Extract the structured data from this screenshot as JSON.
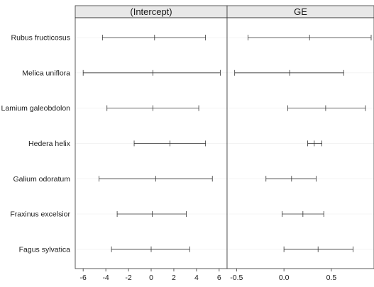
{
  "chart_data": {
    "type": "errorbar",
    "categories": [
      "Rubus fructicosus",
      "Melica uniflora",
      "Lamium galeobdolon",
      "Hedera helix",
      "Galium odoratum",
      "Fraxinus excelsior",
      "Fagus sylvatica"
    ],
    "panels": [
      {
        "title": "(Intercept)",
        "xlim": [
          -6.7,
          6.7
        ],
        "xticks": [
          -6,
          -4,
          -2,
          0,
          2,
          4,
          6
        ],
        "xtick_labels": [
          "-6",
          "-4",
          "-2",
          "0",
          "2",
          "4",
          "6"
        ],
        "estimates": [
          {
            "low": -4.3,
            "mid": 0.3,
            "high": 4.8
          },
          {
            "low": -6.0,
            "mid": 0.15,
            "high": 6.1
          },
          {
            "low": -3.9,
            "mid": 0.15,
            "high": 4.2
          },
          {
            "low": -1.5,
            "mid": 1.65,
            "high": 4.8
          },
          {
            "low": -4.6,
            "mid": 0.4,
            "high": 5.4
          },
          {
            "low": -3.0,
            "mid": 0.1,
            "high": 3.1
          },
          {
            "low": -3.5,
            "mid": 0.0,
            "high": 3.4
          }
        ]
      },
      {
        "title": "GE",
        "xlim": [
          -0.6,
          0.95
        ],
        "xticks": [
          -0.5,
          0.0,
          0.5
        ],
        "xtick_labels": [
          "-0.5",
          "0.0",
          "0.5"
        ],
        "estimates": [
          {
            "low": -0.38,
            "mid": 0.27,
            "high": 0.92
          },
          {
            "low": -0.52,
            "mid": 0.06,
            "high": 0.63
          },
          {
            "low": 0.04,
            "mid": 0.44,
            "high": 0.86
          },
          {
            "low": 0.25,
            "mid": 0.32,
            "high": 0.4
          },
          {
            "low": -0.19,
            "mid": 0.08,
            "high": 0.34
          },
          {
            "low": -0.02,
            "mid": 0.2,
            "high": 0.42
          },
          {
            "low": 0.0,
            "mid": 0.36,
            "high": 0.73
          }
        ]
      }
    ],
    "grid": true
  }
}
